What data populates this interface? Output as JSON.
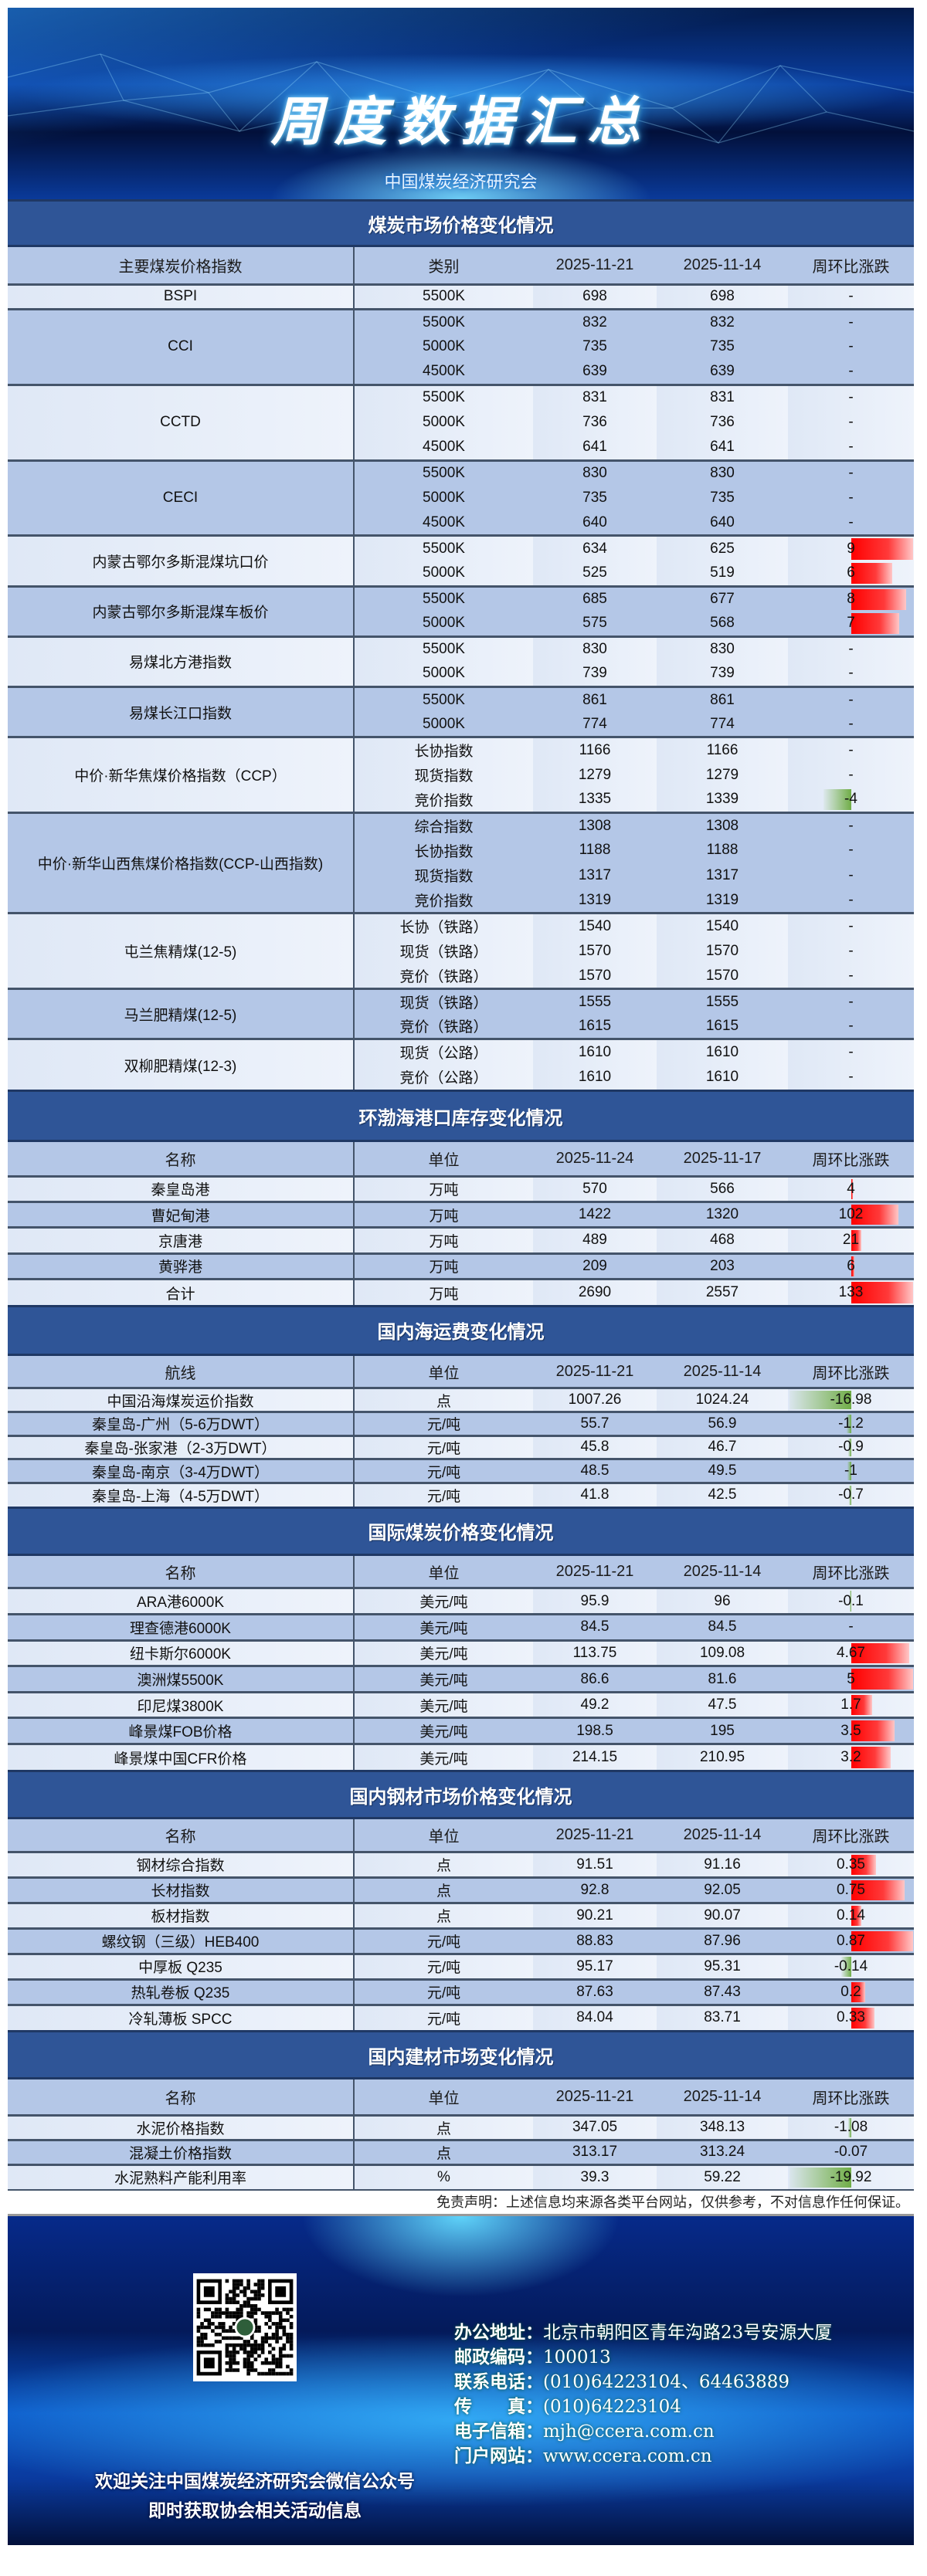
{
  "banner": {
    "title": "周度数据汇总",
    "subtitle": "中国煤炭经济研究会"
  },
  "colors": {
    "section_bar": "#2f5597",
    "row_dark": "#b4c7e7",
    "row_light": "#dfe8f6",
    "increase_bar": "#ff0000",
    "decrease_bar": "#70ad47"
  },
  "sections": [
    {
      "title": "煤炭市场价格变化情况",
      "headers": [
        "主要煤炭价格指数",
        "类别",
        "2025-11-21",
        "2025-11-14",
        "周环比涨跌"
      ],
      "groups": [
        {
          "name": "BSPI",
          "rows": [
            [
              "5500K",
              "698",
              "698",
              "-"
            ]
          ]
        },
        {
          "name": "CCI",
          "rows": [
            [
              "5500K",
              "832",
              "832",
              "-"
            ],
            [
              "5000K",
              "735",
              "735",
              "-"
            ],
            [
              "4500K",
              "639",
              "639",
              "-"
            ]
          ]
        },
        {
          "name": "CCTD",
          "rows": [
            [
              "5500K",
              "831",
              "831",
              "-"
            ],
            [
              "5000K",
              "736",
              "736",
              "-"
            ],
            [
              "4500K",
              "641",
              "641",
              "-"
            ]
          ]
        },
        {
          "name": "CECI",
          "rows": [
            [
              "5500K",
              "830",
              "830",
              "-"
            ],
            [
              "5000K",
              "735",
              "735",
              "-"
            ],
            [
              "4500K",
              "640",
              "640",
              "-"
            ]
          ]
        },
        {
          "name": "内蒙古鄂尔多斯混煤坑口价",
          "rows": [
            [
              "5500K",
              "634",
              "625",
              "9"
            ],
            [
              "5000K",
              "525",
              "519",
              "6"
            ]
          ]
        },
        {
          "name": "内蒙古鄂尔多斯混煤车板价",
          "rows": [
            [
              "5500K",
              "685",
              "677",
              "8"
            ],
            [
              "5000K",
              "575",
              "568",
              "7"
            ]
          ]
        },
        {
          "name": "易煤北方港指数",
          "rows": [
            [
              "5500K",
              "830",
              "830",
              "-"
            ],
            [
              "5000K",
              "739",
              "739",
              "-"
            ]
          ]
        },
        {
          "name": "易煤长江口指数",
          "rows": [
            [
              "5500K",
              "861",
              "861",
              "-"
            ],
            [
              "5000K",
              "774",
              "774",
              "-"
            ]
          ]
        },
        {
          "name": "中价·新华焦煤价格指数（CCP）",
          "rows": [
            [
              "长协指数",
              "1166",
              "1166",
              "-"
            ],
            [
              "现货指数",
              "1279",
              "1279",
              "-"
            ],
            [
              "竞价指数",
              "1335",
              "1339",
              "-4"
            ]
          ]
        },
        {
          "name": "中价·新华山西焦煤价格指数(CCP-山西指数)",
          "rows": [
            [
              "综合指数",
              "1308",
              "1308",
              "-"
            ],
            [
              "长协指数",
              "1188",
              "1188",
              "-"
            ],
            [
              "现货指数",
              "1317",
              "1317",
              "-"
            ],
            [
              "竞价指数",
              "1319",
              "1319",
              "-"
            ]
          ]
        },
        {
          "name": "屯兰焦精煤(12-5)",
          "rows": [
            [
              "长协（铁路）",
              "1540",
              "1540",
              "-"
            ],
            [
              "现货（铁路）",
              "1570",
              "1570",
              "-"
            ],
            [
              "竞价（铁路）",
              "1570",
              "1570",
              "-"
            ]
          ]
        },
        {
          "name": "马兰肥精煤(12-5)",
          "rows": [
            [
              "现货（铁路）",
              "1555",
              "1555",
              "-"
            ],
            [
              "竞价（铁路）",
              "1615",
              "1615",
              "-"
            ]
          ]
        },
        {
          "name": "双柳肥精煤(12-3)",
          "rows": [
            [
              "现货（公路）",
              "1610",
              "1610",
              "-"
            ],
            [
              "竞价（公路）",
              "1610",
              "1610",
              "-"
            ]
          ]
        }
      ]
    },
    {
      "title": "环渤海港口库存变化情况",
      "headers": [
        "名称",
        "单位",
        "2025-11-24",
        "2025-11-17",
        "周环比涨跌"
      ],
      "groups": [
        {
          "name": "秦皇岛港",
          "rows": [
            [
              "万吨",
              "570",
              "566",
              "4"
            ]
          ]
        },
        {
          "name": "曹妃甸港",
          "rows": [
            [
              "万吨",
              "1422",
              "1320",
              "102"
            ]
          ]
        },
        {
          "name": "京唐港",
          "rows": [
            [
              "万吨",
              "489",
              "468",
              "21"
            ]
          ]
        },
        {
          "name": "黄骅港",
          "rows": [
            [
              "万吨",
              "209",
              "203",
              "6"
            ]
          ]
        },
        {
          "name": "合计",
          "rows": [
            [
              "万吨",
              "2690",
              "2557",
              "133"
            ]
          ]
        }
      ]
    },
    {
      "title": "国内海运费变化情况",
      "headers": [
        "航线",
        "单位",
        "2025-11-21",
        "2025-11-14",
        "周环比涨跌"
      ],
      "groups": [
        {
          "name": "中国沿海煤炭运价指数",
          "rows": [
            [
              "点",
              "1007.26",
              "1024.24",
              "-16.98"
            ]
          ]
        },
        {
          "name": "秦皇岛-广州（5-6万DWT）",
          "rows": [
            [
              "元/吨",
              "55.7",
              "56.9",
              "-1.2"
            ]
          ]
        },
        {
          "name": "秦皇岛-张家港（2-3万DWT）",
          "rows": [
            [
              "元/吨",
              "45.8",
              "46.7",
              "-0.9"
            ]
          ]
        },
        {
          "name": "秦皇岛-南京（3-4万DWT）",
          "rows": [
            [
              "元/吨",
              "48.5",
              "49.5",
              "-1"
            ]
          ]
        },
        {
          "name": "秦皇岛-上海（4-5万DWT）",
          "rows": [
            [
              "元/吨",
              "41.8",
              "42.5",
              "-0.7"
            ]
          ]
        }
      ]
    },
    {
      "title": "国际煤炭价格变化情况",
      "headers": [
        "名称",
        "单位",
        "2025-11-21",
        "2025-11-14",
        "周环比涨跌"
      ],
      "groups": [
        {
          "name": "ARA港6000K",
          "rows": [
            [
              "美元/吨",
              "95.9",
              "96",
              "-0.1"
            ]
          ]
        },
        {
          "name": "理查德港6000K",
          "rows": [
            [
              "美元/吨",
              "84.5",
              "84.5",
              "-"
            ]
          ]
        },
        {
          "name": "纽卡斯尔6000K",
          "rows": [
            [
              "美元/吨",
              "113.75",
              "109.08",
              "4.67"
            ]
          ]
        },
        {
          "name": "澳洲煤5500K",
          "rows": [
            [
              "美元/吨",
              "86.6",
              "81.6",
              "5"
            ]
          ]
        },
        {
          "name": "印尼煤3800K",
          "rows": [
            [
              "美元/吨",
              "49.2",
              "47.5",
              "1.7"
            ]
          ]
        },
        {
          "name": "峰景煤FOB价格",
          "rows": [
            [
              "美元/吨",
              "198.5",
              "195",
              "3.5"
            ]
          ]
        },
        {
          "name": "峰景煤中国CFR价格",
          "rows": [
            [
              "美元/吨",
              "214.15",
              "210.95",
              "3.2"
            ]
          ]
        }
      ]
    },
    {
      "title": "国内钢材市场价格变化情况",
      "headers": [
        "名称",
        "单位",
        "2025-11-21",
        "2025-11-14",
        "周环比涨跌"
      ],
      "groups": [
        {
          "name": "钢材综合指数",
          "rows": [
            [
              "点",
              "91.51",
              "91.16",
              "0.35"
            ]
          ]
        },
        {
          "name": "长材指数",
          "rows": [
            [
              "点",
              "92.8",
              "92.05",
              "0.75"
            ]
          ]
        },
        {
          "name": "板材指数",
          "rows": [
            [
              "点",
              "90.21",
              "90.07",
              "0.14"
            ]
          ]
        },
        {
          "name": "螺纹钢（三级）HEB400",
          "rows": [
            [
              "元/吨",
              "88.83",
              "87.96",
              "0.87"
            ]
          ]
        },
        {
          "name": "中厚板 Q235",
          "rows": [
            [
              "元/吨",
              "95.17",
              "95.31",
              "-0.14"
            ]
          ]
        },
        {
          "name": "热轧卷板 Q235",
          "rows": [
            [
              "元/吨",
              "87.63",
              "87.43",
              "0.2"
            ]
          ]
        },
        {
          "name": "冷轧薄板 SPCC",
          "rows": [
            [
              "元/吨",
              "84.04",
              "83.71",
              "0.33"
            ]
          ]
        }
      ]
    },
    {
      "title": "国内建材市场变化情况",
      "headers": [
        "名称",
        "单位",
        "2025-11-21",
        "2025-11-14",
        "周环比涨跌"
      ],
      "groups": [
        {
          "name": "水泥价格指数",
          "rows": [
            [
              "点",
              "347.05",
              "348.13",
              "-1.08"
            ]
          ]
        },
        {
          "name": "混凝土价格指数",
          "rows": [
            [
              "点",
              "313.17",
              "313.24",
              "-0.07"
            ]
          ]
        },
        {
          "name": "水泥熟料产能利用率",
          "rows": [
            [
              "%",
              "39.3",
              "59.22",
              "-19.92"
            ]
          ]
        }
      ]
    }
  ],
  "disclaimer": "免责声明：上述信息均来源各类平台网站，仅供参考，不对信息作任何保证。",
  "footer": {
    "contacts": [
      {
        "label": "办公地址：",
        "value": "北京市朝阳区青年沟路23号安源大厦"
      },
      {
        "label": "邮政编码：",
        "value": "100013"
      },
      {
        "label": "联系电话：",
        "value": "(010)64223104、64463889"
      },
      {
        "label": "传　　真：",
        "value": "(010)64223104"
      },
      {
        "label": "电子信箱：",
        "value": "mjh@ccera.com.cn"
      },
      {
        "label": "门户网站：",
        "value": "www.ccera.com.cn"
      }
    ],
    "welcome_line1": "欢迎关注中国煤炭经济研究会微信公众号",
    "welcome_line2": "即时获取协会相关活动信息",
    "qr_icon": "qr-code-icon"
  }
}
